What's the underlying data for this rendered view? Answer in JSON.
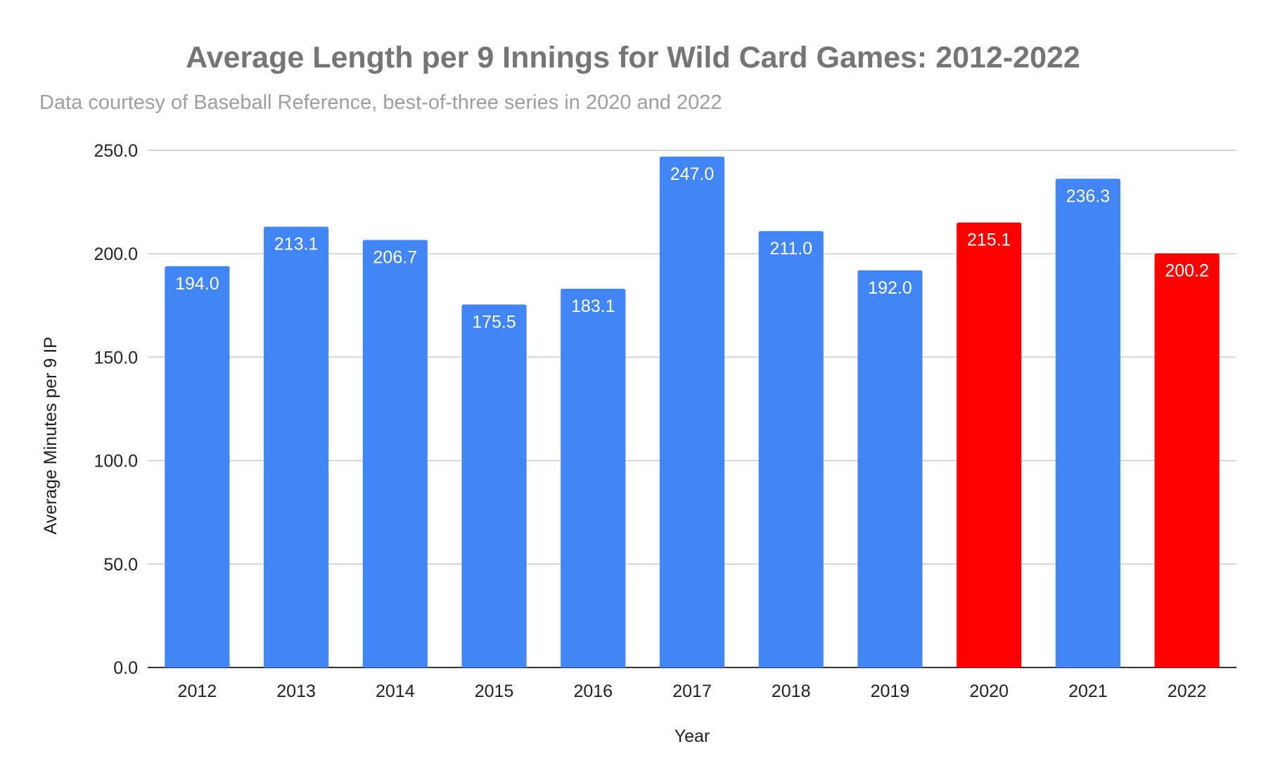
{
  "colors": {
    "default_bar": "#4285f4",
    "highlight_bar": "#ff0000"
  },
  "chart_data": {
    "type": "bar",
    "title": "Average Length per 9 Innings for Wild Card Games: 2012-2022",
    "subtitle": "Data courtesy of Baseball Reference, best-of-three series in 2020 and 2022",
    "xlabel": "Year",
    "ylabel": "Average Minutes per 9 IP",
    "ylim": [
      0,
      250
    ],
    "yticks": [
      "0.0",
      "50.0",
      "100.0",
      "150.0",
      "200.0",
      "250.0"
    ],
    "grid": true,
    "legend": "none",
    "categories": [
      "2012",
      "2013",
      "2014",
      "2015",
      "2016",
      "2017",
      "2018",
      "2019",
      "2020",
      "2021",
      "2022"
    ],
    "values": [
      194.0,
      213.1,
      206.7,
      175.5,
      183.1,
      247.0,
      211.0,
      192.0,
      215.1,
      236.3,
      200.2
    ],
    "value_labels": [
      "194.0",
      "213.1",
      "206.7",
      "175.5",
      "183.1",
      "247.0",
      "211.0",
      "192.0",
      "215.1",
      "236.3",
      "200.2"
    ],
    "bar_colors": [
      "#4285f4",
      "#4285f4",
      "#4285f4",
      "#4285f4",
      "#4285f4",
      "#4285f4",
      "#4285f4",
      "#4285f4",
      "#ff0000",
      "#4285f4",
      "#ff0000"
    ]
  }
}
